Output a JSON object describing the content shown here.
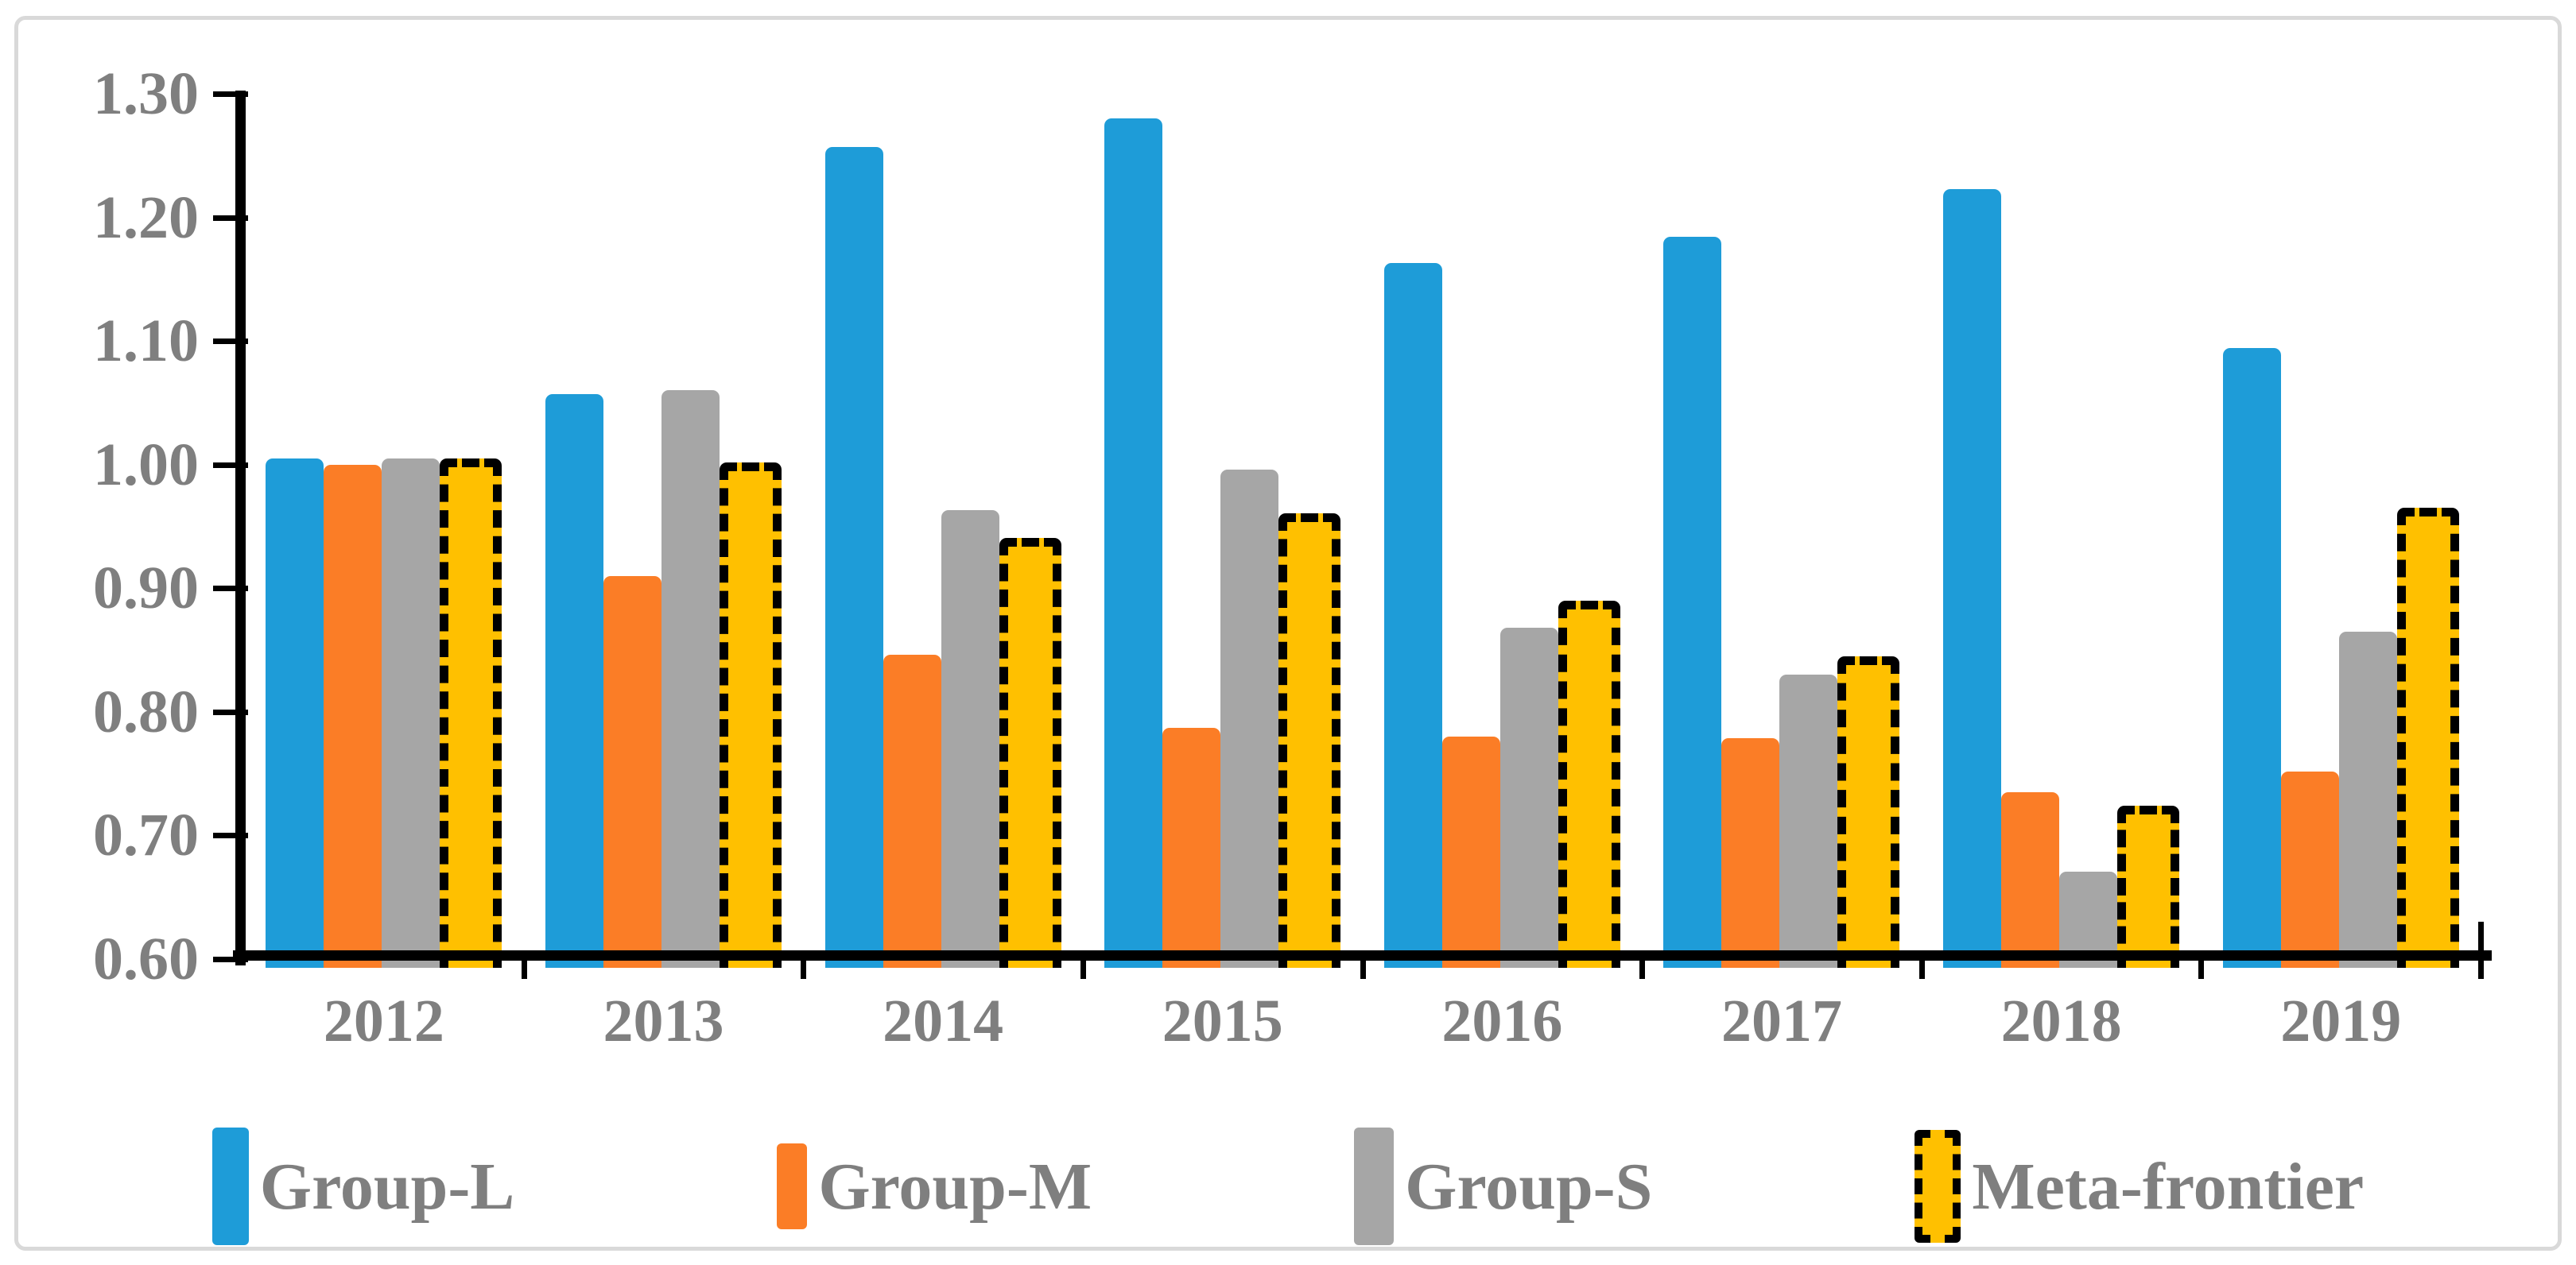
{
  "figure": {
    "background": "#ffffff",
    "frame_border_color": "#d9d9d9",
    "axis_color": "#000000",
    "tick_label_color": "#7f7f7f"
  },
  "chart_data": {
    "type": "bar",
    "title": "",
    "xlabel": "",
    "ylabel": "",
    "categories": [
      "2012",
      "2013",
      "2014",
      "2015",
      "2016",
      "2017",
      "2018",
      "2019"
    ],
    "series": [
      {
        "name": "Group-L",
        "color": "#1E9CD8",
        "style": "solid",
        "values": [
          1.005,
          1.057,
          1.257,
          1.28,
          1.163,
          1.184,
          1.223,
          1.094
        ]
      },
      {
        "name": "Group-M",
        "color": "#FB7D26",
        "style": "solid",
        "values": [
          1.0,
          0.91,
          0.846,
          0.787,
          0.78,
          0.779,
          0.735,
          0.752
        ]
      },
      {
        "name": "Group-S",
        "color": "#A6A6A6",
        "style": "solid",
        "values": [
          1.005,
          1.06,
          0.963,
          0.996,
          0.868,
          0.83,
          0.671,
          0.865
        ]
      },
      {
        "name": "Meta-frontier",
        "color": "#FFC000",
        "style": "dashed-black-border",
        "values": [
          1.001,
          0.998,
          0.937,
          0.957,
          0.886,
          0.841,
          0.72,
          0.961
        ]
      }
    ],
    "ylim": [
      0.6,
      1.3
    ],
    "ytick_step": 0.1,
    "yticks": [
      "1.30",
      "1.20",
      "1.10",
      "1.00",
      "0.90",
      "0.80",
      "0.70",
      "0.60"
    ],
    "grid": false,
    "legend_position": "bottom"
  }
}
